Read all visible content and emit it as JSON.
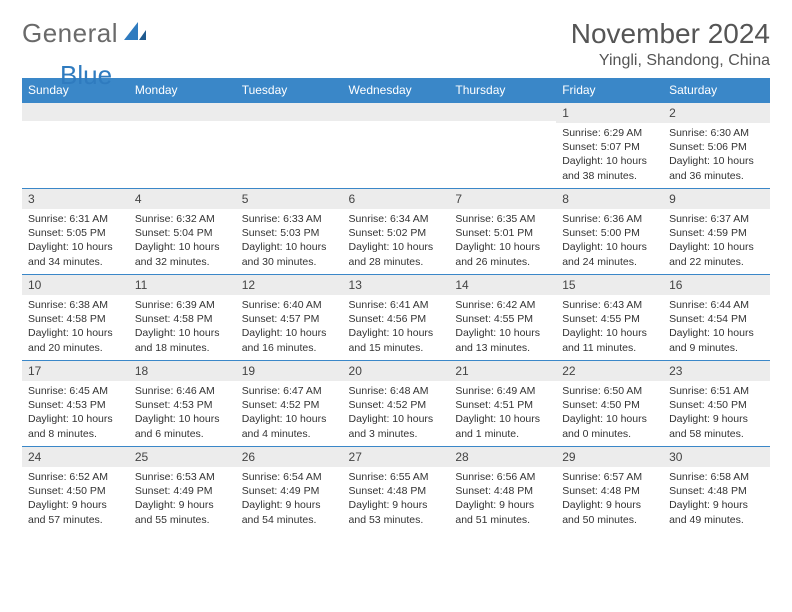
{
  "logo": {
    "text1": "General",
    "text2": "Blue"
  },
  "title": "November 2024",
  "subtitle": "Yingli, Shandong, China",
  "colors": {
    "header_bg": "#3a87c8",
    "header_text": "#ffffff",
    "daynum_bg": "#ececec",
    "border": "#3a87c8",
    "body_text": "#333333",
    "logo_gray": "#6a6a6a",
    "logo_blue": "#2f7bbf"
  },
  "day_headers": [
    "Sunday",
    "Monday",
    "Tuesday",
    "Wednesday",
    "Thursday",
    "Friday",
    "Saturday"
  ],
  "weeks": [
    [
      null,
      null,
      null,
      null,
      null,
      {
        "n": "1",
        "sr": "6:29 AM",
        "ss": "5:07 PM",
        "dl": "10 hours and 38 minutes."
      },
      {
        "n": "2",
        "sr": "6:30 AM",
        "ss": "5:06 PM",
        "dl": "10 hours and 36 minutes."
      }
    ],
    [
      {
        "n": "3",
        "sr": "6:31 AM",
        "ss": "5:05 PM",
        "dl": "10 hours and 34 minutes."
      },
      {
        "n": "4",
        "sr": "6:32 AM",
        "ss": "5:04 PM",
        "dl": "10 hours and 32 minutes."
      },
      {
        "n": "5",
        "sr": "6:33 AM",
        "ss": "5:03 PM",
        "dl": "10 hours and 30 minutes."
      },
      {
        "n": "6",
        "sr": "6:34 AM",
        "ss": "5:02 PM",
        "dl": "10 hours and 28 minutes."
      },
      {
        "n": "7",
        "sr": "6:35 AM",
        "ss": "5:01 PM",
        "dl": "10 hours and 26 minutes."
      },
      {
        "n": "8",
        "sr": "6:36 AM",
        "ss": "5:00 PM",
        "dl": "10 hours and 24 minutes."
      },
      {
        "n": "9",
        "sr": "6:37 AM",
        "ss": "4:59 PM",
        "dl": "10 hours and 22 minutes."
      }
    ],
    [
      {
        "n": "10",
        "sr": "6:38 AM",
        "ss": "4:58 PM",
        "dl": "10 hours and 20 minutes."
      },
      {
        "n": "11",
        "sr": "6:39 AM",
        "ss": "4:58 PM",
        "dl": "10 hours and 18 minutes."
      },
      {
        "n": "12",
        "sr": "6:40 AM",
        "ss": "4:57 PM",
        "dl": "10 hours and 16 minutes."
      },
      {
        "n": "13",
        "sr": "6:41 AM",
        "ss": "4:56 PM",
        "dl": "10 hours and 15 minutes."
      },
      {
        "n": "14",
        "sr": "6:42 AM",
        "ss": "4:55 PM",
        "dl": "10 hours and 13 minutes."
      },
      {
        "n": "15",
        "sr": "6:43 AM",
        "ss": "4:55 PM",
        "dl": "10 hours and 11 minutes."
      },
      {
        "n": "16",
        "sr": "6:44 AM",
        "ss": "4:54 PM",
        "dl": "10 hours and 9 minutes."
      }
    ],
    [
      {
        "n": "17",
        "sr": "6:45 AM",
        "ss": "4:53 PM",
        "dl": "10 hours and 8 minutes."
      },
      {
        "n": "18",
        "sr": "6:46 AM",
        "ss": "4:53 PM",
        "dl": "10 hours and 6 minutes."
      },
      {
        "n": "19",
        "sr": "6:47 AM",
        "ss": "4:52 PM",
        "dl": "10 hours and 4 minutes."
      },
      {
        "n": "20",
        "sr": "6:48 AM",
        "ss": "4:52 PM",
        "dl": "10 hours and 3 minutes."
      },
      {
        "n": "21",
        "sr": "6:49 AM",
        "ss": "4:51 PM",
        "dl": "10 hours and 1 minute."
      },
      {
        "n": "22",
        "sr": "6:50 AM",
        "ss": "4:50 PM",
        "dl": "10 hours and 0 minutes."
      },
      {
        "n": "23",
        "sr": "6:51 AM",
        "ss": "4:50 PM",
        "dl": "9 hours and 58 minutes."
      }
    ],
    [
      {
        "n": "24",
        "sr": "6:52 AM",
        "ss": "4:50 PM",
        "dl": "9 hours and 57 minutes."
      },
      {
        "n": "25",
        "sr": "6:53 AM",
        "ss": "4:49 PM",
        "dl": "9 hours and 55 minutes."
      },
      {
        "n": "26",
        "sr": "6:54 AM",
        "ss": "4:49 PM",
        "dl": "9 hours and 54 minutes."
      },
      {
        "n": "27",
        "sr": "6:55 AM",
        "ss": "4:48 PM",
        "dl": "9 hours and 53 minutes."
      },
      {
        "n": "28",
        "sr": "6:56 AM",
        "ss": "4:48 PM",
        "dl": "9 hours and 51 minutes."
      },
      {
        "n": "29",
        "sr": "6:57 AM",
        "ss": "4:48 PM",
        "dl": "9 hours and 50 minutes."
      },
      {
        "n": "30",
        "sr": "6:58 AM",
        "ss": "4:48 PM",
        "dl": "9 hours and 49 minutes."
      }
    ]
  ],
  "labels": {
    "sunrise": "Sunrise:",
    "sunset": "Sunset:",
    "daylight": "Daylight:"
  }
}
